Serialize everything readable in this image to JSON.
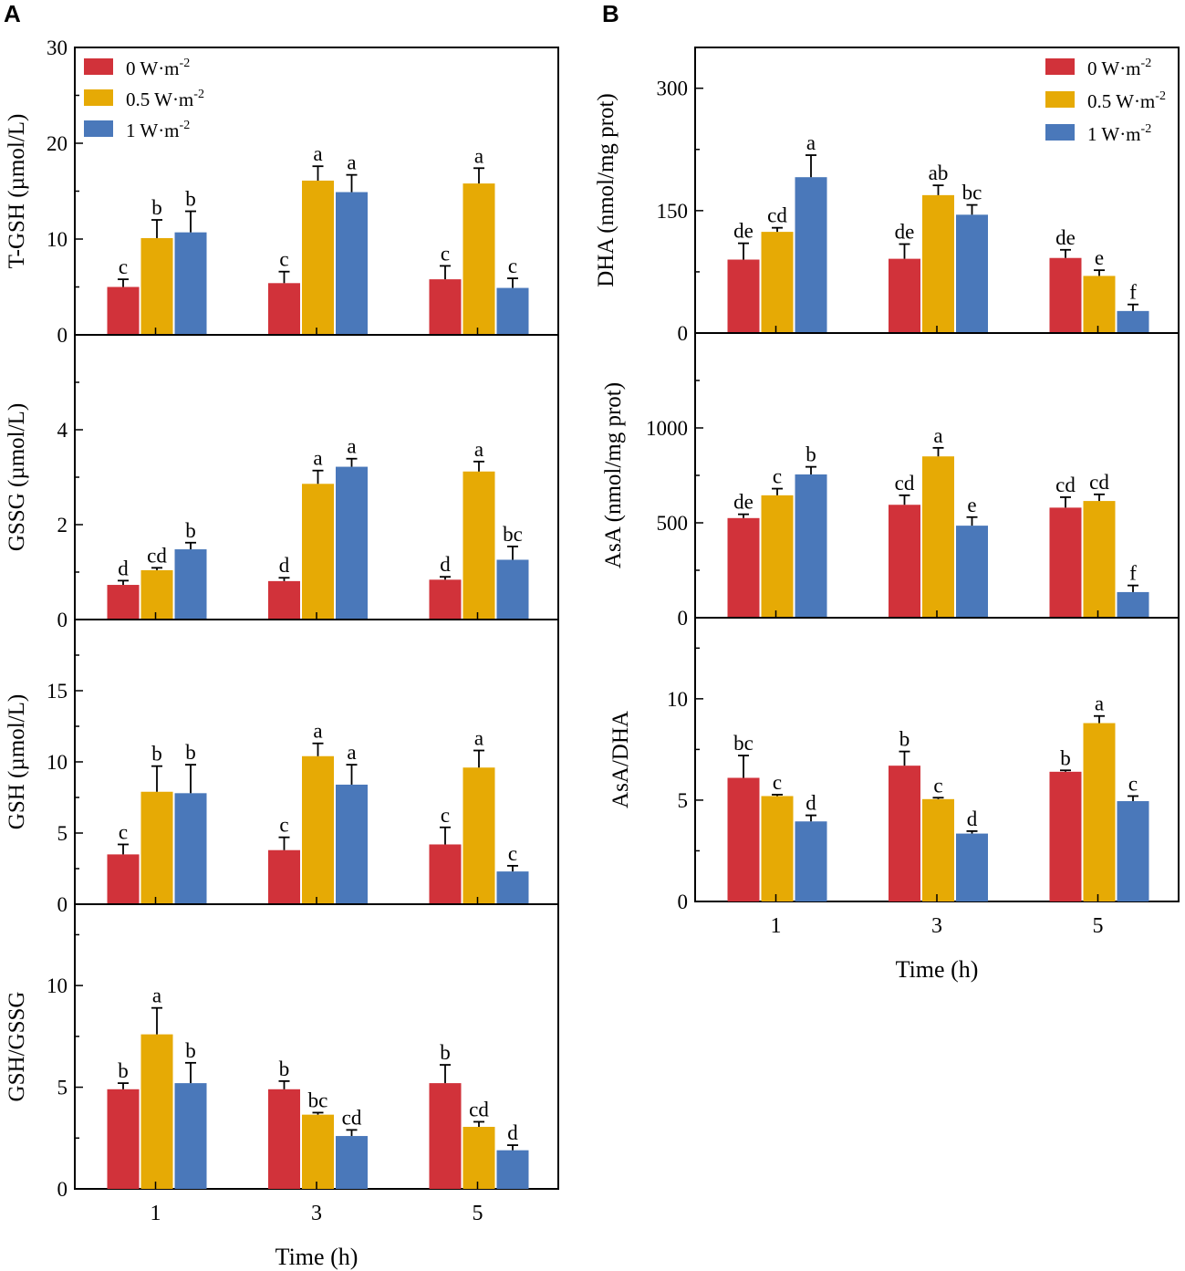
{
  "chart_data": [
    {
      "type": "bar",
      "panel": "A",
      "ylabel": "T-GSH (µmol/L)",
      "xlabel": "",
      "ylim": [
        0,
        30
      ],
      "yticks": [
        "0",
        "10",
        "20",
        "30"
      ],
      "categories": [
        "1",
        "3",
        "5"
      ],
      "series": [
        {
          "name": "0 W·m-2",
          "values": [
            5.0,
            5.4,
            5.8
          ],
          "errors": [
            0.8,
            1.2,
            1.4
          ],
          "letters": [
            "c",
            "c",
            "c"
          ]
        },
        {
          "name": "0.5 W·m-2",
          "values": [
            10.1,
            16.1,
            15.8
          ],
          "errors": [
            1.9,
            1.5,
            1.6
          ],
          "letters": [
            "b",
            "a",
            "a"
          ]
        },
        {
          "name": "1 W·m-2",
          "values": [
            10.7,
            14.9,
            4.9
          ],
          "errors": [
            2.2,
            1.8,
            1.0
          ],
          "letters": [
            "b",
            "a",
            "c"
          ]
        }
      ]
    },
    {
      "type": "bar",
      "ylabel": "GSSG (µmol/L)",
      "xlabel": "",
      "ylim": [
        0,
        6
      ],
      "yticks": [
        "0",
        "2",
        "4"
      ],
      "categories": [
        "1",
        "3",
        "5"
      ],
      "series": [
        {
          "name": "0 W·m-2",
          "values": [
            0.73,
            0.81,
            0.84
          ],
          "errors": [
            0.09,
            0.07,
            0.06
          ],
          "letters": [
            "d",
            "d",
            "d"
          ]
        },
        {
          "name": "0.5 W·m-2",
          "values": [
            1.04,
            2.86,
            3.12
          ],
          "errors": [
            0.05,
            0.28,
            0.21
          ],
          "letters": [
            "cd",
            "a",
            "a"
          ]
        },
        {
          "name": "1 W·m-2",
          "values": [
            1.48,
            3.22,
            1.26
          ],
          "errors": [
            0.14,
            0.17,
            0.28
          ],
          "letters": [
            "b",
            "a",
            "bc"
          ]
        }
      ]
    },
    {
      "type": "bar",
      "ylabel": "GSH (µmol/L)",
      "xlabel": "",
      "ylim": [
        0,
        20
      ],
      "yticks": [
        "0",
        "5",
        "10",
        "15"
      ],
      "categories": [
        "1",
        "3",
        "5"
      ],
      "series": [
        {
          "name": "0 W·m-2",
          "values": [
            3.5,
            3.8,
            4.2
          ],
          "errors": [
            0.7,
            0.9,
            1.2
          ],
          "letters": [
            "c",
            "c",
            "c"
          ]
        },
        {
          "name": "0.5 W·m-2",
          "values": [
            7.9,
            10.4,
            9.6
          ],
          "errors": [
            1.8,
            0.9,
            1.2
          ],
          "letters": [
            "b",
            "a",
            "a"
          ]
        },
        {
          "name": "1 W·m-2",
          "values": [
            7.8,
            8.4,
            2.3
          ],
          "errors": [
            2.0,
            1.4,
            0.4
          ],
          "letters": [
            "b",
            "a",
            "c"
          ]
        }
      ]
    },
    {
      "type": "bar",
      "ylabel": "GSH/GSSG",
      "xlabel": "Time (h)",
      "ylim": [
        0,
        14
      ],
      "yticks": [
        "0",
        "5",
        "10"
      ],
      "categories": [
        "1",
        "3",
        "5"
      ],
      "series": [
        {
          "name": "0 W·m-2",
          "values": [
            4.9,
            4.9,
            5.2
          ],
          "errors": [
            0.3,
            0.4,
            0.9
          ],
          "letters": [
            "b",
            "b",
            "b"
          ]
        },
        {
          "name": "0.5 W·m-2",
          "values": [
            7.6,
            3.65,
            3.05
          ],
          "errors": [
            1.3,
            0.1,
            0.25
          ],
          "letters": [
            "a",
            "bc",
            "cd"
          ]
        },
        {
          "name": "1 W·m-2",
          "values": [
            5.2,
            2.6,
            1.9
          ],
          "errors": [
            1.0,
            0.3,
            0.25
          ],
          "letters": [
            "b",
            "cd",
            "d"
          ]
        }
      ]
    },
    {
      "type": "bar",
      "panel": "B",
      "ylabel": "DHA (nmol/mg prot)",
      "xlabel": "",
      "ylim": [
        0,
        350
      ],
      "yticks": [
        "0",
        "150",
        "300"
      ],
      "categories": [
        "1",
        "3",
        "5"
      ],
      "series": [
        {
          "name": "0 W·m-2",
          "values": [
            90,
            91,
            92
          ],
          "errors": [
            20,
            18,
            10
          ],
          "letters": [
            "de",
            "de",
            "de"
          ]
        },
        {
          "name": "0.5 W·m-2",
          "values": [
            124,
            169,
            70
          ],
          "errors": [
            5,
            12,
            7
          ],
          "letters": [
            "cd",
            "ab",
            "e"
          ]
        },
        {
          "name": "1 W·m-2",
          "values": [
            191,
            145,
            27
          ],
          "errors": [
            27,
            12,
            8
          ],
          "letters": [
            "a",
            "bc",
            "f"
          ]
        }
      ]
    },
    {
      "type": "bar",
      "ylabel": "AsA (nmol/mg prot)",
      "xlabel": "",
      "ylim": [
        0,
        1500
      ],
      "yticks": [
        "0",
        "500",
        "1000"
      ],
      "categories": [
        "1",
        "3",
        "5"
      ],
      "series": [
        {
          "name": "0 W·m-2",
          "values": [
            525,
            595,
            580
          ],
          "errors": [
            20,
            50,
            55
          ],
          "letters": [
            "de",
            "cd",
            "cd"
          ]
        },
        {
          "name": "0.5 W·m-2",
          "values": [
            645,
            850,
            615
          ],
          "errors": [
            35,
            45,
            35
          ],
          "letters": [
            "c",
            "a",
            "cd"
          ]
        },
        {
          "name": "1 W·m-2",
          "values": [
            755,
            485,
            135
          ],
          "errors": [
            40,
            45,
            35
          ],
          "letters": [
            "b",
            "e",
            "f"
          ]
        }
      ]
    },
    {
      "type": "bar",
      "ylabel": "AsA/DHA",
      "xlabel": "Time (h)",
      "ylim": [
        0,
        14
      ],
      "yticks": [
        "0",
        "5",
        "10"
      ],
      "categories": [
        "1",
        "3",
        "5"
      ],
      "series": [
        {
          "name": "0 W·m-2",
          "values": [
            6.1,
            6.7,
            6.4
          ],
          "errors": [
            1.1,
            0.7,
            0.07
          ],
          "letters": [
            "bc",
            "b",
            "b"
          ]
        },
        {
          "name": "0.5 W·m-2",
          "values": [
            5.2,
            5.05,
            8.8
          ],
          "errors": [
            0.07,
            0.07,
            0.35
          ],
          "letters": [
            "c",
            "c",
            "a"
          ]
        },
        {
          "name": "1 W·m-2",
          "values": [
            3.95,
            3.35,
            4.95
          ],
          "errors": [
            0.3,
            0.12,
            0.25
          ],
          "letters": [
            "d",
            "d",
            "c"
          ]
        }
      ]
    }
  ],
  "legend": [
    {
      "text": "0 W·m",
      "sup": "-2",
      "color": "#D1323A"
    },
    {
      "text": "0.5 W·m",
      "sup": "-2",
      "color": "#E6AA05"
    },
    {
      "text": "1 W·m",
      "sup": "-2",
      "color": "#4A78BA"
    }
  ],
  "colors": {
    "series": [
      "#D1323A",
      "#E6AA05",
      "#4A78BA"
    ],
    "axis": "#000000"
  }
}
